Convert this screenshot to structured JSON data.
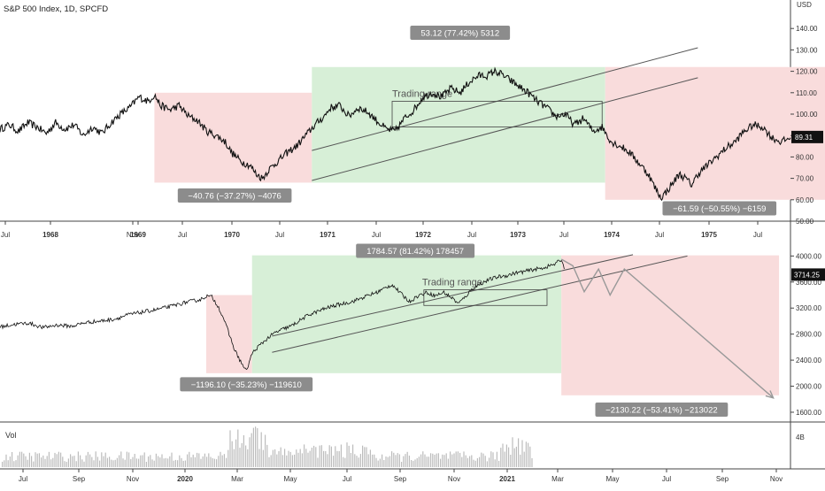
{
  "header": {
    "symbol": "S&P 500 Index, 1D, SPCFD",
    "currency": "USD"
  },
  "colors": {
    "bear_zone": "#f9dcdc",
    "bull_zone": "#d7efd7",
    "badge_bg": "#8c8c8c",
    "price_line": "#111111",
    "channel_line": "#555555",
    "projection_line": "#999999",
    "volume_bar": "#bcbcbc",
    "axis_border": "#444444",
    "current_price_label_bg": "#111111"
  },
  "chart_data": [
    {
      "type": "line",
      "name": "historical",
      "title": "S&P 500 Index, 1D, SPCFD",
      "x_ticks": [
        "Jul",
        "1968",
        "Nov",
        "1969",
        "Jul",
        "1970",
        "Jul",
        "1971",
        "Jul",
        "1972",
        "Jul",
        "1973",
        "Jul",
        "1974",
        "Jul",
        "1975",
        "Jul"
      ],
      "bold_ticks": [
        "1968",
        "1969",
        "1970",
        "1971",
        "1972",
        "1973",
        "1974",
        "1975"
      ],
      "y_ticks": [
        50,
        60,
        70,
        80,
        90,
        100,
        110,
        120,
        130,
        140
      ],
      "y_unit_label": "USD",
      "ylim": [
        50,
        150
      ],
      "current_price": "89.31",
      "price_path": [
        [
          0,
          93
        ],
        [
          3,
          95
        ],
        [
          6,
          92
        ],
        [
          9,
          96
        ],
        [
          12,
          94
        ],
        [
          15,
          91
        ],
        [
          18,
          96
        ],
        [
          21,
          93
        ],
        [
          24,
          95
        ],
        [
          27,
          90
        ],
        [
          30,
          94
        ],
        [
          33,
          91
        ],
        [
          36,
          96
        ],
        [
          39,
          100
        ],
        [
          42,
          103
        ],
        [
          45,
          108
        ],
        [
          48,
          106
        ],
        [
          50,
          109
        ],
        [
          52,
          104
        ],
        [
          55,
          102
        ],
        [
          58,
          104
        ],
        [
          61,
          99
        ],
        [
          64,
          97
        ],
        [
          67,
          92
        ],
        [
          70,
          90
        ],
        [
          73,
          87
        ],
        [
          75,
          82
        ],
        [
          78,
          78
        ],
        [
          81,
          76
        ],
        [
          83,
          72
        ],
        [
          85,
          70
        ],
        [
          87,
          74
        ],
        [
          90,
          78
        ],
        [
          93,
          82
        ],
        [
          96,
          85
        ],
        [
          99,
          90
        ],
        [
          102,
          95
        ],
        [
          105,
          99
        ],
        [
          107,
          103
        ],
        [
          110,
          104
        ],
        [
          113,
          99
        ],
        [
          116,
          103
        ],
        [
          119,
          101
        ],
        [
          122,
          97
        ],
        [
          125,
          93
        ],
        [
          128,
          92
        ],
        [
          131,
          98
        ],
        [
          134,
          102
        ],
        [
          137,
          108
        ],
        [
          140,
          110
        ],
        [
          143,
          108
        ],
        [
          146,
          112
        ],
        [
          149,
          110
        ],
        [
          152,
          115
        ],
        [
          155,
          118
        ],
        [
          158,
          118
        ],
        [
          160,
          120
        ],
        [
          162,
          119
        ],
        [
          165,
          116
        ],
        [
          168,
          113
        ],
        [
          171,
          110
        ],
        [
          174,
          106
        ],
        [
          177,
          103
        ],
        [
          180,
          99
        ],
        [
          183,
          100
        ],
        [
          186,
          95
        ],
        [
          189,
          98
        ],
        [
          192,
          92
        ],
        [
          195,
          94
        ],
        [
          198,
          87
        ],
        [
          201,
          85
        ],
        [
          204,
          82
        ],
        [
          207,
          77
        ],
        [
          210,
          72
        ],
        [
          212,
          66
        ],
        [
          214,
          61
        ],
        [
          216,
          64
        ],
        [
          218,
          68
        ],
        [
          220,
          72
        ],
        [
          222,
          70
        ],
        [
          224,
          67
        ],
        [
          226,
          72
        ],
        [
          229,
          76
        ],
        [
          232,
          80
        ],
        [
          235,
          84
        ],
        [
          238,
          87
        ],
        [
          241,
          92
        ],
        [
          244,
          95
        ],
        [
          247,
          94
        ],
        [
          250,
          89
        ],
        [
          253,
          87
        ],
        [
          256,
          89
        ]
      ],
      "zones": [
        {
          "kind": "bear",
          "x_start": 50,
          "x_end": 101,
          "y_top": 110,
          "y_bottom": 68
        },
        {
          "kind": "bull",
          "x_start": 101,
          "x_end": 196,
          "y_top": 122,
          "y_bottom": 68
        },
        {
          "kind": "bear",
          "x_start": 196,
          "x_end": 278,
          "y_top": 122,
          "y_bottom": 60
        }
      ],
      "channel": [
        {
          "x1": 101,
          "y1": 83,
          "x2": 226,
          "y2": 131
        },
        {
          "x1": 101,
          "y1": 69,
          "x2": 226,
          "y2": 117
        }
      ],
      "trading_range": {
        "label": "Trading range",
        "x_start": 127,
        "x_end": 195,
        "y_top": 106,
        "y_bottom": 94
      },
      "badges": [
        {
          "text": "53.12 (77.42%) 5312",
          "x": 149,
          "y": 138
        },
        {
          "text": "−40.76 (−37.27%) −4076",
          "x": 76,
          "y": 62
        },
        {
          "text": "−61.59 (−50.55%) −6159",
          "x": 233,
          "y": 56
        }
      ]
    },
    {
      "type": "line",
      "name": "current",
      "x_ticks": [
        "Jul",
        "Sep",
        "Nov",
        "2020",
        "Mar",
        "May",
        "Jul",
        "Sep",
        "Nov",
        "2021",
        "Mar",
        "May",
        "Jul",
        "Sep",
        "Nov"
      ],
      "bold_ticks": [
        "2020",
        "2021"
      ],
      "y_ticks": [
        1600,
        2000,
        2400,
        2800,
        3200,
        3600,
        4000
      ],
      "y_unit_label": "USD",
      "ylim": [
        1450,
        4100
      ],
      "current_price": "3714.25",
      "price_path": [
        [
          0,
          2910
        ],
        [
          5,
          2950
        ],
        [
          10,
          2970
        ],
        [
          15,
          2900
        ],
        [
          20,
          2940
        ],
        [
          25,
          2920
        ],
        [
          30,
          2980
        ],
        [
          35,
          3000
        ],
        [
          40,
          3030
        ],
        [
          45,
          3100
        ],
        [
          50,
          3140
        ],
        [
          55,
          3180
        ],
        [
          60,
          3230
        ],
        [
          65,
          3290
        ],
        [
          70,
          3330
        ],
        [
          72,
          3385
        ],
        [
          74,
          3370
        ],
        [
          76,
          3240
        ],
        [
          78,
          3050
        ],
        [
          80,
          2800
        ],
        [
          82,
          2550
        ],
        [
          84,
          2380
        ],
        [
          86,
          2230
        ],
        [
          88,
          2500
        ],
        [
          90,
          2600
        ],
        [
          93,
          2720
        ],
        [
          96,
          2820
        ],
        [
          99,
          2880
        ],
        [
          102,
          2930
        ],
        [
          105,
          3020
        ],
        [
          108,
          3100
        ],
        [
          111,
          3150
        ],
        [
          114,
          3200
        ],
        [
          117,
          3240
        ],
        [
          120,
          3270
        ],
        [
          123,
          3300
        ],
        [
          126,
          3350
        ],
        [
          129,
          3400
        ],
        [
          132,
          3450
        ],
        [
          135,
          3520
        ],
        [
          137,
          3560
        ],
        [
          140,
          3420
        ],
        [
          143,
          3300
        ],
        [
          146,
          3390
        ],
        [
          149,
          3440
        ],
        [
          152,
          3390
        ],
        [
          155,
          3440
        ],
        [
          158,
          3350
        ],
        [
          160,
          3270
        ],
        [
          162,
          3350
        ],
        [
          165,
          3500
        ],
        [
          168,
          3580
        ],
        [
          171,
          3640
        ],
        [
          174,
          3680
        ],
        [
          177,
          3700
        ],
        [
          180,
          3740
        ],
        [
          183,
          3760
        ],
        [
          186,
          3790
        ],
        [
          189,
          3810
        ],
        [
          192,
          3850
        ],
        [
          194,
          3880
        ],
        [
          196,
          3950
        ],
        [
          197,
          3800
        ]
      ],
      "projection": [
        [
          196,
          3950
        ],
        [
          200,
          3850
        ],
        [
          204,
          3450
        ],
        [
          209,
          3800
        ],
        [
          213,
          3400
        ],
        [
          218,
          3800
        ],
        [
          270,
          1820
        ]
      ],
      "zones": [
        {
          "kind": "bear",
          "x_start": 72,
          "x_end": 88,
          "y_top": 3400,
          "y_bottom": 2200
        },
        {
          "kind": "bull",
          "x_start": 88,
          "x_end": 196,
          "y_top": 4010,
          "y_bottom": 2200
        },
        {
          "kind": "bear",
          "x_start": 196,
          "x_end": 272,
          "y_top": 4010,
          "y_bottom": 1860
        }
      ],
      "channel": [
        {
          "x1": 95,
          "y1": 2520,
          "x2": 240,
          "y2": 4000
        },
        {
          "x1": 95,
          "y1": 2770,
          "x2": 221,
          "y2": 4020
        }
      ],
      "trading_range": {
        "label": "Trading range",
        "x_start": 148,
        "x_end": 191,
        "y_top": 3480,
        "y_bottom": 3240
      },
      "badges": [
        {
          "text": "1784.57 (81.42%) 178457",
          "x": 145,
          "y": 4080
        },
        {
          "text": "−1196.10 (−35.23%) −119610",
          "x": 86,
          "y": 2030
        },
        {
          "text": "−2130.22 (−53.41%) −213022",
          "x": 231,
          "y": 1640
        }
      ]
    },
    {
      "type": "bar",
      "name": "volume",
      "label": "Vol",
      "y_ticks": [
        "4B"
      ],
      "note": "daily volume bars for the same period as the current panel"
    }
  ]
}
